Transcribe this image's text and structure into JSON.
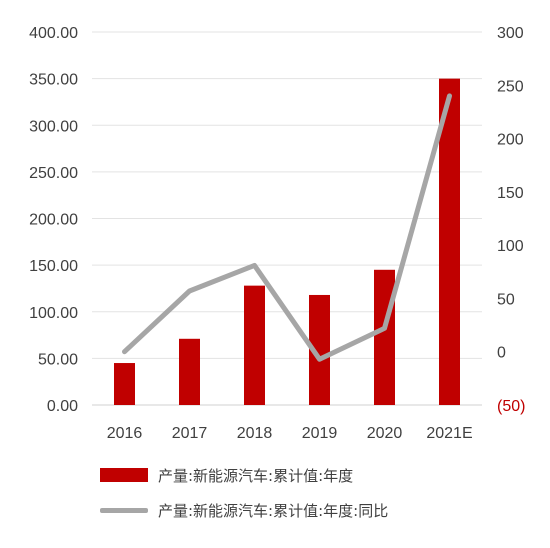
{
  "chart_data": {
    "type": "bar",
    "categories": [
      "2016",
      "2017",
      "2018",
      "2019",
      "2020",
      "2021E"
    ],
    "series": [
      {
        "name": "产量:新能源汽车:累计值:年度",
        "type": "bar",
        "axis": "left",
        "color": "#c00000",
        "values": [
          45,
          71,
          128,
          118,
          145,
          350
        ]
      },
      {
        "name": "产量:新能源汽车:累计值:年度:同比",
        "type": "line",
        "axis": "right",
        "color": "#a6a6a6",
        "values": [
          0,
          57,
          81,
          -7,
          22,
          240
        ]
      }
    ],
    "y_left": {
      "range": [
        0,
        400
      ],
      "ticks": [
        "0.00",
        "50.00",
        "100.00",
        "150.00",
        "200.00",
        "250.00",
        "300.00",
        "350.00",
        "400.00"
      ]
    },
    "y_right": {
      "range": [
        -50,
        300
      ],
      "ticks": [
        "(50)",
        "0",
        "50",
        "100",
        "150",
        "200",
        "250",
        "300"
      ],
      "negative_color": "#c00000"
    },
    "grid": true,
    "legend_position": "bottom"
  }
}
